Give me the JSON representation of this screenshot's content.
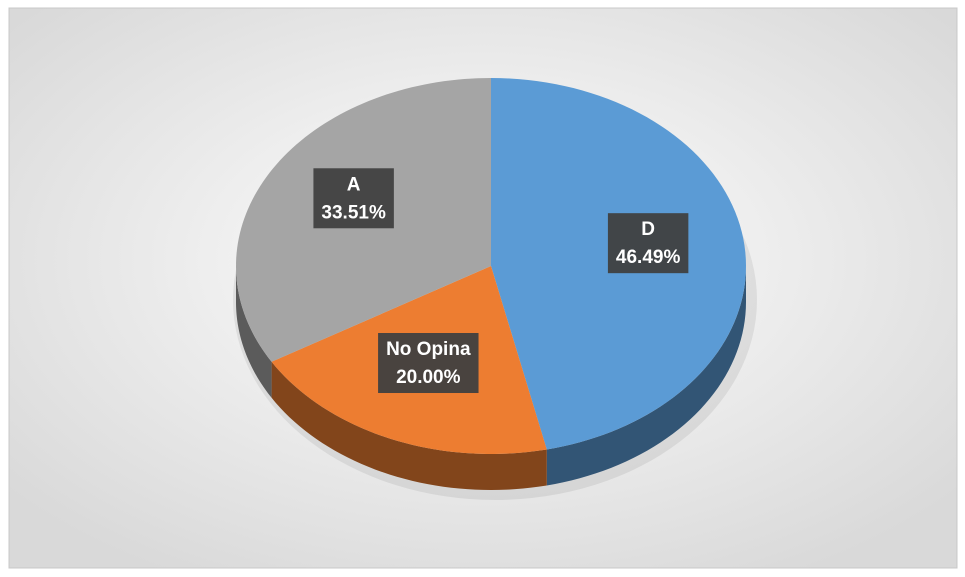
{
  "chart_data": {
    "type": "pie",
    "categories": [
      "D",
      "No Opina",
      "A"
    ],
    "values": [
      46.49,
      20.0,
      33.51
    ],
    "value_labels": [
      "46.49%",
      "20.00%",
      "33.51%"
    ],
    "colors": [
      "#5b9bd5",
      "#ed7d31",
      "#a5a5a5"
    ]
  }
}
